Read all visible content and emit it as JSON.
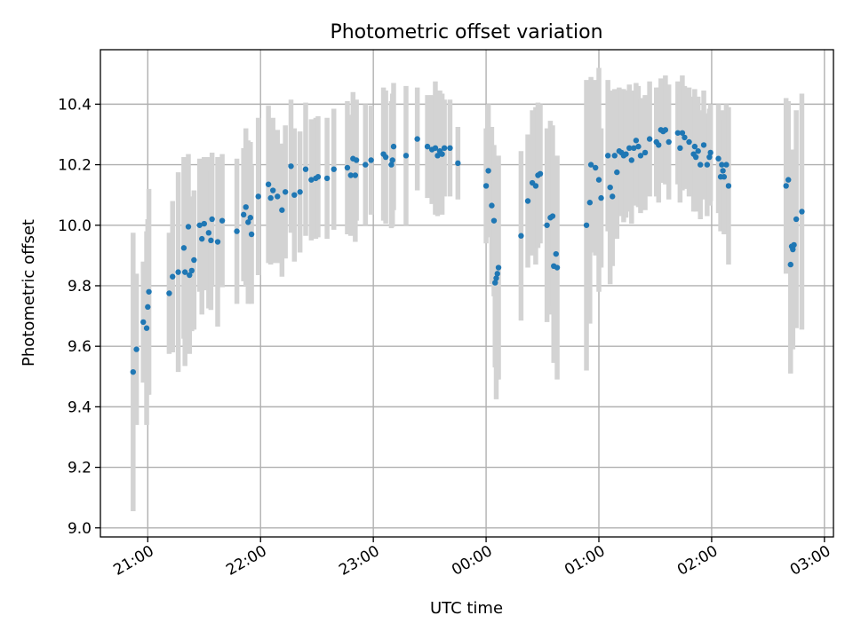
{
  "chart_data": {
    "type": "scatter",
    "title": "Photometric offset variation",
    "xlabel": "UTC time",
    "ylabel": "Photometric offset",
    "x_unit": "hours after 21:00 UTC",
    "xlim": [
      -0.42,
      6.08
    ],
    "ylim": [
      8.97,
      10.58
    ],
    "yticks": [
      9.0,
      9.2,
      9.4,
      9.6,
      9.8,
      10.0,
      10.2,
      10.4
    ],
    "xticks": [
      {
        "value": 0,
        "label": "21:00"
      },
      {
        "value": 1,
        "label": "22:00"
      },
      {
        "value": 2,
        "label": "23:00"
      },
      {
        "value": 3,
        "label": "00:00"
      },
      {
        "value": 4,
        "label": "01:00"
      },
      {
        "value": 5,
        "label": "02:00"
      },
      {
        "value": 6,
        "label": "03:00"
      }
    ],
    "grid": true,
    "colors": {
      "point": "#1f77b4",
      "errorbar": "#d3d3d3"
    },
    "points": [
      [
        -0.13,
        9.515,
        0.46
      ],
      [
        -0.1,
        9.59,
        0.25
      ],
      [
        -0.04,
        9.68,
        0.2
      ],
      [
        -0.01,
        9.66,
        0.32
      ],
      [
        0.0,
        9.73,
        0.29
      ],
      [
        0.01,
        9.78,
        0.34
      ],
      [
        0.19,
        9.775,
        0.2
      ],
      [
        0.22,
        9.83,
        0.25
      ],
      [
        0.27,
        9.845,
        0.33
      ],
      [
        0.32,
        9.925,
        0.3
      ],
      [
        0.33,
        9.845,
        0.31
      ],
      [
        0.36,
        9.995,
        0.24
      ],
      [
        0.37,
        9.835,
        0.26
      ],
      [
        0.39,
        9.85,
        0.2
      ],
      [
        0.41,
        9.885,
        0.23
      ],
      [
        0.46,
        10.0,
        0.22
      ],
      [
        0.48,
        9.955,
        0.25
      ],
      [
        0.5,
        10.005,
        0.22
      ],
      [
        0.54,
        9.975,
        0.25
      ],
      [
        0.56,
        9.95,
        0.23
      ],
      [
        0.57,
        10.02,
        0.22
      ],
      [
        0.62,
        9.945,
        0.28
      ],
      [
        0.66,
        10.015,
        0.22
      ],
      [
        0.79,
        9.98,
        0.24
      ],
      [
        0.85,
        10.035,
        0.22
      ],
      [
        0.87,
        10.06,
        0.26
      ],
      [
        0.89,
        10.01,
        0.27
      ],
      [
        0.91,
        10.025,
        0.25
      ],
      [
        0.92,
        9.97,
        0.23
      ],
      [
        0.98,
        10.095,
        0.26
      ],
      [
        1.07,
        10.135,
        0.26
      ],
      [
        1.09,
        10.09,
        0.22
      ],
      [
        1.11,
        10.115,
        0.24
      ],
      [
        1.15,
        10.095,
        0.22
      ],
      [
        1.19,
        10.05,
        0.22
      ],
      [
        1.22,
        10.11,
        0.22
      ],
      [
        1.27,
        10.195,
        0.22
      ],
      [
        1.3,
        10.1,
        0.22
      ],
      [
        1.35,
        10.11,
        0.2
      ],
      [
        1.4,
        10.185,
        0.22
      ],
      [
        1.45,
        10.15,
        0.2
      ],
      [
        1.49,
        10.155,
        0.2
      ],
      [
        1.51,
        10.16,
        0.2
      ],
      [
        1.59,
        10.155,
        0.2
      ],
      [
        1.65,
        10.185,
        0.2
      ],
      [
        1.77,
        10.19,
        0.22
      ],
      [
        1.8,
        10.165,
        0.2
      ],
      [
        1.82,
        10.22,
        0.22
      ],
      [
        1.84,
        10.165,
        0.22
      ],
      [
        1.85,
        10.215,
        0.2
      ],
      [
        1.93,
        10.2,
        0.2
      ],
      [
        1.98,
        10.215,
        0.18
      ],
      [
        2.09,
        10.235,
        0.22
      ],
      [
        2.11,
        10.225,
        0.22
      ],
      [
        2.16,
        10.2,
        0.21
      ],
      [
        2.17,
        10.215,
        0.22
      ],
      [
        2.18,
        10.26,
        0.21
      ],
      [
        2.29,
        10.23,
        0.23
      ],
      [
        2.39,
        10.285,
        0.17
      ],
      [
        2.48,
        10.26,
        0.17
      ],
      [
        2.52,
        10.25,
        0.18
      ],
      [
        2.55,
        10.255,
        0.22
      ],
      [
        2.57,
        10.23,
        0.2
      ],
      [
        2.59,
        10.245,
        0.2
      ],
      [
        2.61,
        10.235,
        0.2
      ],
      [
        2.63,
        10.255,
        0.16
      ],
      [
        2.68,
        10.255,
        0.16
      ],
      [
        2.75,
        10.205,
        0.12
      ],
      [
        3.0,
        10.13,
        0.19
      ],
      [
        3.02,
        10.18,
        0.22
      ],
      [
        3.05,
        10.065,
        0.26
      ],
      [
        3.07,
        10.015,
        0.25
      ],
      [
        3.08,
        9.81,
        0.28
      ],
      [
        3.09,
        9.825,
        0.4
      ],
      [
        3.1,
        9.84,
        0.35
      ],
      [
        3.11,
        9.86,
        0.37
      ],
      [
        3.31,
        9.965,
        0.28
      ],
      [
        3.37,
        10.08,
        0.22
      ],
      [
        3.41,
        10.14,
        0.24
      ],
      [
        3.44,
        10.13,
        0.26
      ],
      [
        3.46,
        10.165,
        0.24
      ],
      [
        3.48,
        10.17,
        0.23
      ],
      [
        3.54,
        10.0,
        0.32
      ],
      [
        3.57,
        10.025,
        0.32
      ],
      [
        3.59,
        10.03,
        0.3
      ],
      [
        3.6,
        9.865,
        0.32
      ],
      [
        3.62,
        9.905,
        0.31
      ],
      [
        3.63,
        9.86,
        0.37
      ],
      [
        3.89,
        10.0,
        0.48
      ],
      [
        3.92,
        10.075,
        0.4
      ],
      [
        3.93,
        10.2,
        0.29
      ],
      [
        3.97,
        10.19,
        0.29
      ],
      [
        4.0,
        10.15,
        0.37
      ],
      [
        4.02,
        10.09,
        0.23
      ],
      [
        4.08,
        10.23,
        0.25
      ],
      [
        4.1,
        10.125,
        0.32
      ],
      [
        4.12,
        10.095,
        0.23
      ],
      [
        4.14,
        10.23,
        0.22
      ],
      [
        4.16,
        10.175,
        0.22
      ],
      [
        4.18,
        10.245,
        0.21
      ],
      [
        4.2,
        10.24,
        0.21
      ],
      [
        4.22,
        10.23,
        0.22
      ],
      [
        4.24,
        10.235,
        0.21
      ],
      [
        4.27,
        10.255,
        0.21
      ],
      [
        4.29,
        10.215,
        0.21
      ],
      [
        4.31,
        10.255,
        0.19
      ],
      [
        4.33,
        10.28,
        0.19
      ],
      [
        4.35,
        10.26,
        0.2
      ],
      [
        4.37,
        10.23,
        0.19
      ],
      [
        4.41,
        10.24,
        0.19
      ],
      [
        4.45,
        10.285,
        0.19
      ],
      [
        4.51,
        10.275,
        0.18
      ],
      [
        4.53,
        10.265,
        0.19
      ],
      [
        4.55,
        10.315,
        0.17
      ],
      [
        4.57,
        10.31,
        0.17
      ],
      [
        4.59,
        10.315,
        0.18
      ],
      [
        4.62,
        10.275,
        0.19
      ],
      [
        4.7,
        10.305,
        0.17
      ],
      [
        4.72,
        10.255,
        0.18
      ],
      [
        4.74,
        10.305,
        0.19
      ],
      [
        4.76,
        10.29,
        0.17
      ],
      [
        4.8,
        10.275,
        0.18
      ],
      [
        4.84,
        10.235,
        0.19
      ],
      [
        4.85,
        10.26,
        0.19
      ],
      [
        4.86,
        10.225,
        0.18
      ],
      [
        4.88,
        10.245,
        0.18
      ],
      [
        4.9,
        10.2,
        0.18
      ],
      [
        4.93,
        10.265,
        0.18
      ],
      [
        4.96,
        10.2,
        0.17
      ],
      [
        4.98,
        10.225,
        0.16
      ],
      [
        4.99,
        10.24,
        0.16
      ],
      [
        5.06,
        10.22,
        0.18
      ],
      [
        5.08,
        10.16,
        0.18
      ],
      [
        5.09,
        10.2,
        0.18
      ],
      [
        5.1,
        10.18,
        0.18
      ],
      [
        5.11,
        10.16,
        0.19
      ],
      [
        5.13,
        10.2,
        0.2
      ],
      [
        5.15,
        10.13,
        0.26
      ],
      [
        5.66,
        10.13,
        0.29
      ],
      [
        5.68,
        10.15,
        0.26
      ],
      [
        5.7,
        9.87,
        0.36
      ],
      [
        5.71,
        9.93,
        0.28
      ],
      [
        5.72,
        9.92,
        0.33
      ],
      [
        5.73,
        9.935,
        0.22
      ],
      [
        5.75,
        10.02,
        0.36
      ],
      [
        5.8,
        10.045,
        0.39
      ]
    ]
  }
}
